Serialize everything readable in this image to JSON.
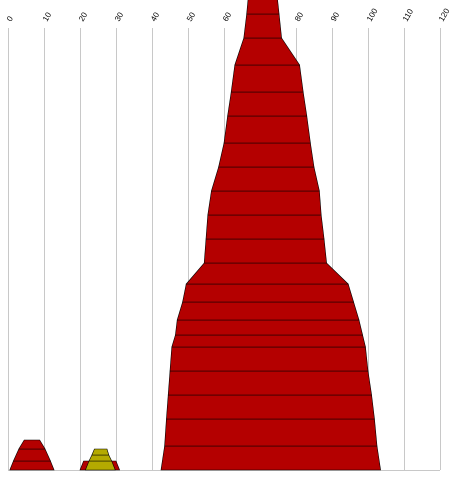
{
  "chart_data": {
    "type": "area",
    "title": "",
    "xlabel": "",
    "ylabel": "",
    "xlim": [
      0,
      120
    ],
    "x_ticks": [
      "0",
      "10",
      "20",
      "30",
      "40",
      "50",
      "60",
      "70",
      "80",
      "90",
      "100",
      "110",
      "120"
    ],
    "grid": true,
    "legend": "none",
    "shapes": [
      {
        "color": "#b40000",
        "bands": [
          {
            "left": 1.5,
            "right": 11.8,
            "height": 3
          },
          {
            "left": 3.0,
            "right": 10.3,
            "height": 4
          },
          {
            "left": 4.5,
            "right": 8.8,
            "height": 3
          }
        ]
      },
      {
        "color": "#b40000",
        "bands": [
          {
            "left": 21.0,
            "right": 30.0,
            "height": 3
          }
        ]
      },
      {
        "color": "#b4aa00",
        "bands": [
          {
            "left": 22.5,
            "right": 28.8,
            "height": 3
          },
          {
            "left": 23.3,
            "right": 28.0,
            "height": 2
          },
          {
            "left": 24.0,
            "right": 27.5,
            "height": 2
          }
        ]
      },
      {
        "color": "#b40000",
        "bands": [
          {
            "left": 43.5,
            "right": 102.5,
            "height": 8
          },
          {
            "left": 44.0,
            "right": 101.8,
            "height": 9
          },
          {
            "left": 44.5,
            "right": 101.0,
            "height": 8
          },
          {
            "left": 45.0,
            "right": 100.0,
            "height": 8
          },
          {
            "left": 45.5,
            "right": 99.3,
            "height": 8
          },
          {
            "left": 46.5,
            "right": 98.5,
            "height": 4
          },
          {
            "left": 47.0,
            "right": 97.5,
            "height": 5
          },
          {
            "left": 48.5,
            "right": 96.0,
            "height": 6
          },
          {
            "left": 49.5,
            "right": 94.5,
            "height": 6
          },
          {
            "left": 54.5,
            "right": 88.5,
            "height": 7
          },
          {
            "left": 55.0,
            "right": 87.8,
            "height": 8
          },
          {
            "left": 55.5,
            "right": 87.0,
            "height": 8
          },
          {
            "left": 56.5,
            "right": 86.5,
            "height": 8
          },
          {
            "left": 58.5,
            "right": 85.0,
            "height": 8
          },
          {
            "left": 60.0,
            "right": 84.0,
            "height": 8
          },
          {
            "left": 61.0,
            "right": 83.0,
            "height": 9
          },
          {
            "left": 62.0,
            "right": 82.0,
            "height": 8
          },
          {
            "left": 63.0,
            "right": 81.0,
            "height": 9
          },
          {
            "left": 65.5,
            "right": 76.0,
            "height": 9
          },
          {
            "left": 66.3,
            "right": 75.3,
            "height": 8
          },
          {
            "left": 67.0,
            "right": 74.5,
            "height": 9
          },
          {
            "left": 67.8,
            "right": 73.8,
            "height": 8
          },
          {
            "left": 69.0,
            "right": 73.0,
            "height": 4
          }
        ]
      }
    ]
  }
}
